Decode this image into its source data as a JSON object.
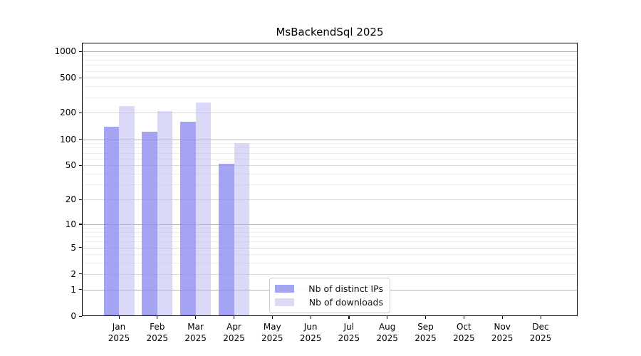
{
  "chart_data": {
    "type": "bar",
    "title": "MsBackendSql 2025",
    "y_scale": "log1p",
    "ylim": [
      0,
      1250
    ],
    "grid": true,
    "legend_position": "lower center",
    "y_ticks": [
      "1000",
      "500",
      "200",
      "100",
      "50",
      "20",
      "10",
      "5",
      "2",
      "1",
      "0"
    ],
    "x_tick_months": [
      "Jan",
      "Feb",
      "Mar",
      "Apr",
      "May",
      "Jun",
      "Jul",
      "Aug",
      "Sep",
      "Oct",
      "Nov",
      "Dec"
    ],
    "x_tick_year": "2025",
    "series": [
      {
        "name": "Nb of distinct IPs",
        "color": "rgba(138,138,238,0.78)",
        "values": [
          139,
          121,
          159,
          52,
          0,
          0,
          0,
          0,
          0,
          0,
          0,
          0
        ]
      },
      {
        "name": "Nb of downloads",
        "color": "rgba(187,187,242,0.55)",
        "values": [
          237,
          210,
          261,
          91,
          0,
          0,
          0,
          0,
          0,
          0,
          0,
          0
        ]
      }
    ],
    "gridline_values": {
      "major": [
        1,
        10,
        100,
        1000
      ],
      "mid": [
        2,
        5,
        20,
        50,
        200,
        500
      ],
      "minor": [
        3,
        4,
        6,
        7,
        8,
        9,
        30,
        40,
        60,
        70,
        80,
        90,
        300,
        400,
        600,
        700,
        800,
        900
      ]
    },
    "grid_colors": {
      "major": "#b2b2b2",
      "mid": "#dadada",
      "minor": "#ececec"
    }
  }
}
